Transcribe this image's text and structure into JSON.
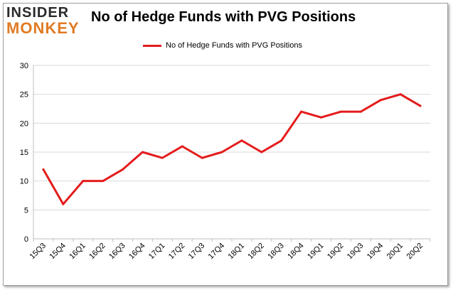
{
  "logo": {
    "line1": "INSIDER",
    "line2": "MONKEY"
  },
  "chart_data": {
    "type": "line",
    "title": "No of Hedge Funds with PVG Positions",
    "xlabel": "",
    "ylabel": "",
    "categories": [
      "15Q3",
      "15Q4",
      "16Q1",
      "16Q2",
      "16Q3",
      "16Q4",
      "17Q1",
      "17Q2",
      "17Q3",
      "17Q4",
      "18Q1",
      "18Q2",
      "18Q3",
      "18Q4",
      "19Q1",
      "19Q2",
      "19Q3",
      "19Q4",
      "20Q1",
      "20Q2"
    ],
    "series": [
      {
        "name": "No of Hedge Funds with PVG Positions",
        "color": "#e41c1c",
        "values": [
          12,
          6,
          10,
          10,
          12,
          15,
          14,
          16,
          14,
          15,
          17,
          15,
          17,
          22,
          21,
          22,
          22,
          24,
          25,
          23
        ]
      }
    ],
    "ylim": [
      0,
      30
    ],
    "yticks": [
      0,
      5,
      10,
      15,
      20,
      25,
      30
    ],
    "grid": true,
    "legend_position": "top-center"
  }
}
